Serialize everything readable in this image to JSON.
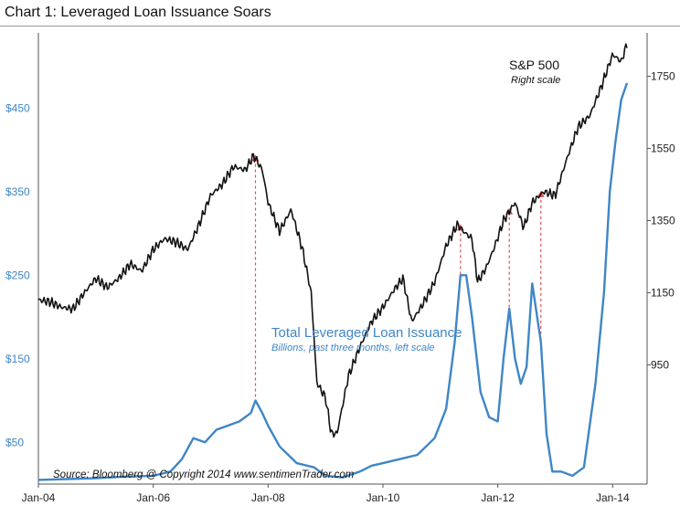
{
  "title": "Chart 1:  Leveraged Loan Issuance Soars",
  "chart_data": {
    "type": "line",
    "left_axis": {
      "ticks": [
        "$50",
        "$150",
        "$250",
        "$350",
        "$450"
      ],
      "tick_values": [
        50,
        150,
        250,
        350,
        450
      ],
      "range": [
        0,
        540
      ]
    },
    "right_axis": {
      "ticks": [
        "950",
        "1150",
        "1350",
        "1550",
        "1750"
      ],
      "tick_values": [
        950,
        1150,
        1350,
        1550,
        1750
      ],
      "range": [
        620,
        1870
      ]
    },
    "x_axis": {
      "ticks": [
        "Jan-04",
        "Jan-06",
        "Jan-08",
        "Jan-10",
        "Jan-12",
        "Jan-14"
      ],
      "tick_values": [
        2004.0,
        2006.0,
        2008.0,
        2010.0,
        2012.0,
        2014.0
      ],
      "range": [
        2004.0,
        2014.6
      ]
    },
    "series": [
      {
        "name": "S&P 500",
        "subtitle": "Right scale",
        "axis": "right",
        "color": "#111111",
        "x": [
          2004.0,
          2004.2,
          2004.4,
          2004.6,
          2004.8,
          2005.0,
          2005.2,
          2005.4,
          2005.6,
          2005.8,
          2006.0,
          2006.2,
          2006.4,
          2006.6,
          2006.8,
          2007.0,
          2007.2,
          2007.4,
          2007.6,
          2007.75,
          2007.9,
          2008.0,
          2008.2,
          2008.4,
          2008.6,
          2008.75,
          2008.85,
          2009.0,
          2009.1,
          2009.2,
          2009.4,
          2009.6,
          2009.8,
          2010.0,
          2010.2,
          2010.35,
          2010.5,
          2010.7,
          2010.9,
          2011.1,
          2011.3,
          2011.4,
          2011.55,
          2011.65,
          2011.8,
          2011.95,
          2012.1,
          2012.3,
          2012.45,
          2012.6,
          2012.8,
          2013.0,
          2013.2,
          2013.4,
          2013.6,
          2013.8,
          2014.0,
          2014.08,
          2014.15,
          2014.25
        ],
        "y": [
          1130,
          1125,
          1110,
          1105,
          1150,
          1190,
          1165,
          1190,
          1230,
          1210,
          1270,
          1300,
          1290,
          1270,
          1340,
          1420,
          1450,
          1500,
          1490,
          1530,
          1490,
          1400,
          1320,
          1380,
          1270,
          1150,
          900,
          860,
          760,
          760,
          920,
          1000,
          1070,
          1110,
          1160,
          1190,
          1070,
          1120,
          1180,
          1280,
          1340,
          1320,
          1300,
          1180,
          1220,
          1280,
          1350,
          1400,
          1330,
          1400,
          1430,
          1420,
          1520,
          1610,
          1640,
          1720,
          1810,
          1800,
          1790,
          1840
        ]
      },
      {
        "name": "Total Leveraged Loan Issuance",
        "subtitle": "Billions, past three months, left scale",
        "axis": "left",
        "color": "#3f86c6",
        "x": [
          2004.0,
          2004.5,
          2005.0,
          2005.5,
          2006.0,
          2006.3,
          2006.5,
          2006.7,
          2006.9,
          2007.1,
          2007.3,
          2007.5,
          2007.7,
          2007.78,
          2007.9,
          2008.0,
          2008.2,
          2008.5,
          2008.8,
          2009.0,
          2009.3,
          2009.6,
          2009.8,
          2010.0,
          2010.3,
          2010.6,
          2010.9,
          2011.1,
          2011.25,
          2011.35,
          2011.45,
          2011.55,
          2011.7,
          2011.85,
          2012.0,
          2012.1,
          2012.2,
          2012.3,
          2012.4,
          2012.5,
          2012.6,
          2012.75,
          2012.85,
          2012.95,
          2013.1,
          2013.3,
          2013.5,
          2013.7,
          2013.85,
          2013.95,
          2014.05,
          2014.15,
          2014.25
        ],
        "y": [
          5,
          6,
          7,
          9,
          10,
          15,
          30,
          55,
          50,
          65,
          70,
          75,
          85,
          100,
          85,
          70,
          45,
          25,
          20,
          10,
          8,
          15,
          22,
          25,
          30,
          35,
          55,
          90,
          170,
          250,
          250,
          200,
          110,
          80,
          75,
          150,
          210,
          150,
          120,
          140,
          240,
          170,
          60,
          15,
          15,
          10,
          20,
          120,
          230,
          350,
          410,
          460,
          480
        ]
      }
    ],
    "annotations": {
      "source": "Source:  Bloomberg  @ Copyright 2014  www.sentimenTrader.com",
      "markers_x": [
        2007.78,
        2011.35,
        2012.2,
        2012.75
      ]
    }
  }
}
